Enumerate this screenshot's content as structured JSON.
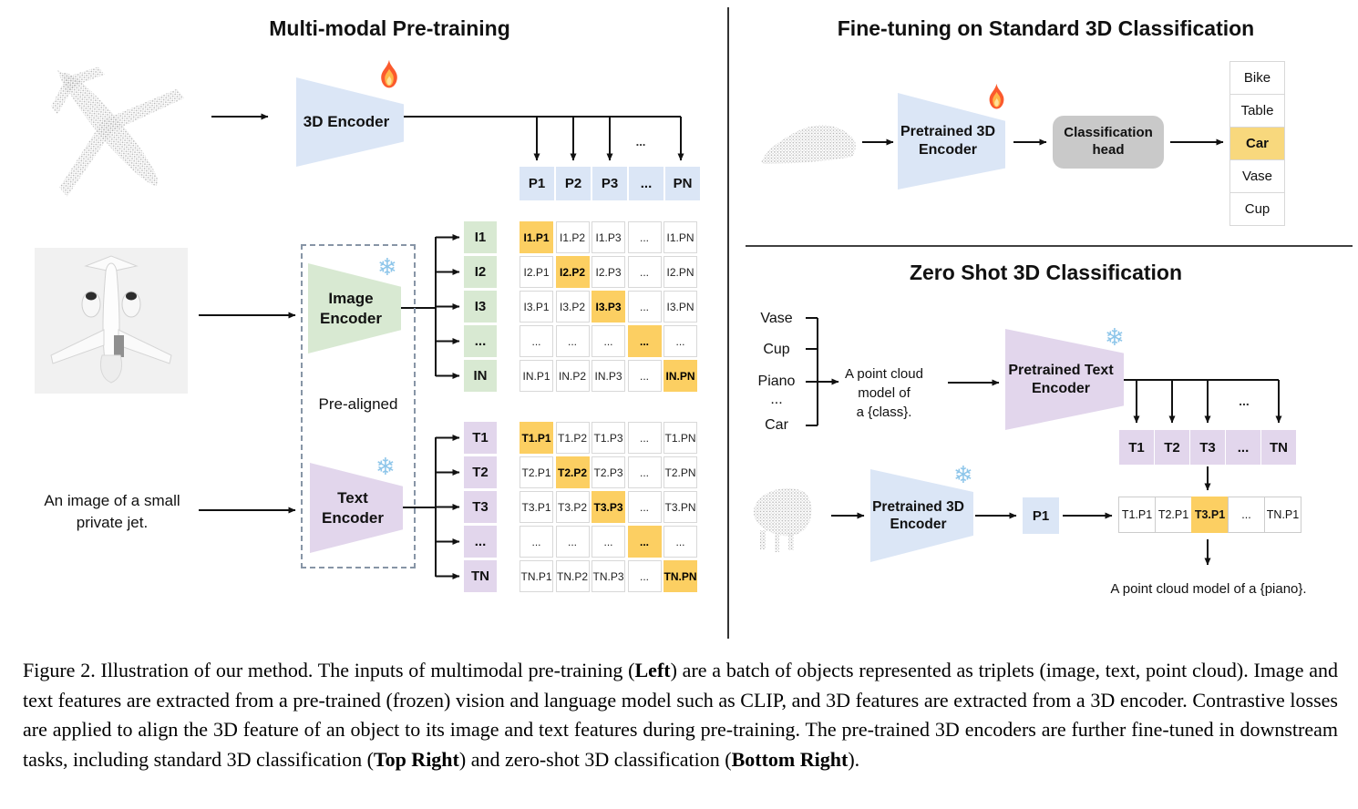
{
  "colors": {
    "blue_cell": "#dbe6f6",
    "green_cell": "#d8e9d2",
    "purple_cell": "#e2d6ec",
    "orange_highlight": "#fccf62",
    "list_highlight": "#f8d87d",
    "gray_box": "#c9c9c9",
    "snowflake_blue": "#8ec6ea"
  },
  "left_panel": {
    "title": "Multi-modal Pre-training",
    "encoder_3d_label": "3D Encoder",
    "p_row": [
      "P1",
      "P2",
      "P3",
      "...",
      "PN"
    ],
    "row_ellipsis": "...",
    "image_encoder_label_lines": [
      "Image",
      "Encoder"
    ],
    "text_encoder_label_lines": [
      "Text",
      "Encoder"
    ],
    "pre_aligned_label": "Pre-aligned",
    "image_caption_lines": [
      "An image of a small",
      "private jet."
    ],
    "i_labels": [
      "I1",
      "I2",
      "I3",
      "...",
      "IN"
    ],
    "i_matrix": [
      [
        "I1.P1",
        "I1.P2",
        "I1.P3",
        "...",
        "I1.PN"
      ],
      [
        "I2.P1",
        "I2.P2",
        "I2.P3",
        "...",
        "I2.PN"
      ],
      [
        "I3.P1",
        "I3.P2",
        "I3.P3",
        "...",
        "I3.PN"
      ],
      [
        "...",
        "...",
        "...",
        "...",
        "..."
      ],
      [
        "IN.P1",
        "IN.P2",
        "IN.P3",
        "...",
        "IN.PN"
      ]
    ],
    "t_labels": [
      "T1",
      "T2",
      "T3",
      "...",
      "TN"
    ],
    "t_matrix": [
      [
        "T1.P1",
        "T1.P2",
        "T1.P3",
        "...",
        "T1.PN"
      ],
      [
        "T2.P1",
        "T2.P2",
        "T2.P3",
        "...",
        "T2.PN"
      ],
      [
        "T3.P1",
        "T3.P2",
        "T3.P3",
        "...",
        "T3.PN"
      ],
      [
        "...",
        "...",
        "...",
        "...",
        "..."
      ],
      [
        "TN.P1",
        "TN.P2",
        "TN.P3",
        "...",
        "TN.PN"
      ]
    ]
  },
  "top_right_panel": {
    "title": "Fine-tuning on Standard 3D Classification",
    "encoder_label_lines": [
      "Pretrained 3D",
      "Encoder"
    ],
    "head_label_lines": [
      "Classification",
      "head"
    ],
    "class_list": [
      "Bike",
      "Table",
      "Car",
      "Vase",
      "Cup"
    ],
    "highlighted_class": "Car"
  },
  "bottom_right_panel": {
    "title": "Zero Shot 3D Classification",
    "class_prompts": [
      "Vase",
      "Cup",
      "Piano",
      "...",
      "Car"
    ],
    "prompt_lines": [
      "A point cloud model of",
      "a {class}."
    ],
    "text_encoder_label_lines": [
      "Pretrained Text",
      "Encoder"
    ],
    "t_row": [
      "T1",
      "T2",
      "T3",
      "...",
      "TN"
    ],
    "row_ellipsis": "...",
    "encoder_3d_label_lines": [
      "Pretrained 3D",
      "Encoder"
    ],
    "p_cell": "P1",
    "result_row": [
      "T1.P1",
      "T2.P1",
      "T3.P1",
      "...",
      "TN.P1"
    ],
    "highlighted_result": "T3.P1",
    "output_text": "A point cloud model of a {piano}."
  },
  "caption": {
    "segments": [
      {
        "text": "Figure 2. Illustration of our method. The inputs of multimodal pre-training (",
        "bold": false
      },
      {
        "text": "Left",
        "bold": true
      },
      {
        "text": ") are a batch of objects represented as triplets (image, text, point cloud). Image and text features are extracted from a pre-trained (frozen) vision and language model such as CLIP, and 3D features are extracted from a 3D encoder. Contrastive losses are applied to align the 3D feature of an object to its image and text features during pre-training. The pre-trained 3D encoders are further fine-tuned in downstream tasks, including standard 3D classification (",
        "bold": false
      },
      {
        "text": "Top Right",
        "bold": true
      },
      {
        "text": ") and zero-shot 3D classification (",
        "bold": false
      },
      {
        "text": "Bottom Right",
        "bold": true
      },
      {
        "text": ").",
        "bold": false
      }
    ]
  }
}
